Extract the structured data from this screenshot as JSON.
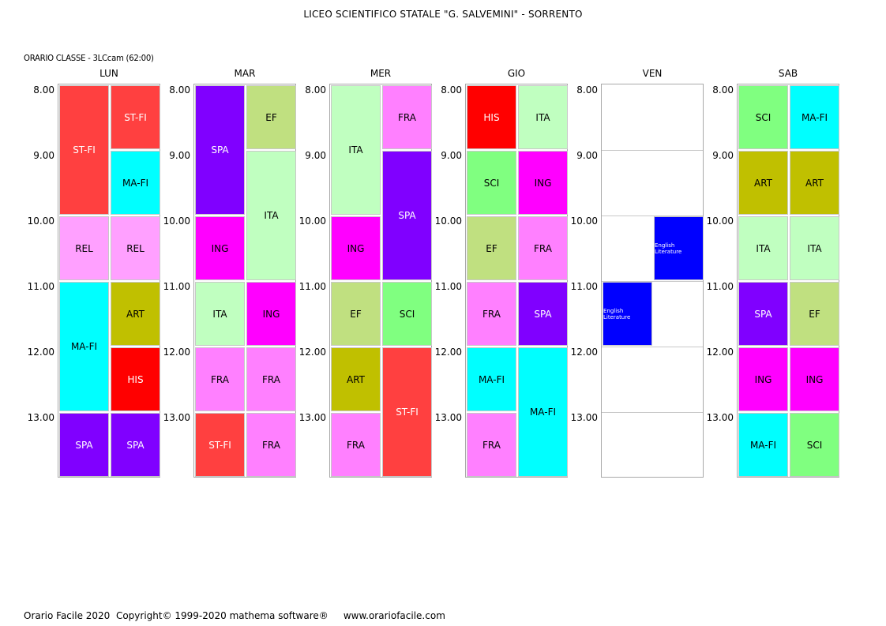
{
  "header": {
    "title": "LICEO SCIENTIFICO STATALE \"G. SALVEMINI\" - SORRENTO",
    "subtitle": "ORARIO CLASSE  -  3LCcam  (62:00)"
  },
  "subjects": {
    "ST-FI": {
      "bg": "#ff4040",
      "fg": "#ffffff"
    },
    "MA-FI": {
      "bg": "#00ffff",
      "fg": "#000000"
    },
    "REL": {
      "bg": "#ffa0ff",
      "fg": "#000000"
    },
    "ART": {
      "bg": "#c0c000",
      "fg": "#000000"
    },
    "HIS": {
      "bg": "#ff0000",
      "fg": "#ffffff"
    },
    "SPA": {
      "bg": "#8000ff",
      "fg": "#ffffff"
    },
    "EF": {
      "bg": "#c0e080",
      "fg": "#000000"
    },
    "ITA": {
      "bg": "#c0ffc0",
      "fg": "#000000"
    },
    "ING": {
      "bg": "#ff00ff",
      "fg": "#000000"
    },
    "FRA": {
      "bg": "#ff80ff",
      "fg": "#000000"
    },
    "SCI": {
      "bg": "#80ff80",
      "fg": "#000000"
    },
    "English Literature": {
      "bg": "#0000ff",
      "fg": "#ffffff"
    }
  },
  "times": [
    "8.00",
    "9.00",
    "10.00",
    "11.00",
    "12.00",
    "13.00"
  ],
  "days": [
    {
      "name": "LUN",
      "cells": [
        {
          "label": "ST-FI",
          "col": 0,
          "start": 0,
          "span": 2
        },
        {
          "label": "ST-FI",
          "col": 1,
          "start": 0,
          "span": 1
        },
        {
          "label": "MA-FI",
          "col": 1,
          "start": 1,
          "span": 1
        },
        {
          "label": "REL",
          "col": 0,
          "start": 2,
          "span": 1
        },
        {
          "label": "REL",
          "col": 1,
          "start": 2,
          "span": 1
        },
        {
          "label": "MA-FI",
          "col": 0,
          "start": 3,
          "span": 2
        },
        {
          "label": "ART",
          "col": 1,
          "start": 3,
          "span": 1
        },
        {
          "label": "HIS",
          "col": 1,
          "start": 4,
          "span": 1
        },
        {
          "label": "SPA",
          "col": 0,
          "start": 5,
          "span": 1
        },
        {
          "label": "SPA",
          "col": 1,
          "start": 5,
          "span": 1
        }
      ]
    },
    {
      "name": "MAR",
      "cells": [
        {
          "label": "SPA",
          "col": 0,
          "start": 0,
          "span": 2
        },
        {
          "label": "EF",
          "col": 1,
          "start": 0,
          "span": 1
        },
        {
          "label": "ITA",
          "col": 1,
          "start": 1,
          "span": 2
        },
        {
          "label": "ING",
          "col": 0,
          "start": 2,
          "span": 1
        },
        {
          "label": "ITA",
          "col": 0,
          "start": 3,
          "span": 1
        },
        {
          "label": "ING",
          "col": 1,
          "start": 3,
          "span": 1
        },
        {
          "label": "FRA",
          "col": 0,
          "start": 4,
          "span": 1
        },
        {
          "label": "FRA",
          "col": 1,
          "start": 4,
          "span": 1
        },
        {
          "label": "ST-FI",
          "col": 0,
          "start": 5,
          "span": 1
        },
        {
          "label": "FRA",
          "col": 1,
          "start": 5,
          "span": 1
        }
      ]
    },
    {
      "name": "MER",
      "cells": [
        {
          "label": "ITA",
          "col": 0,
          "start": 0,
          "span": 2
        },
        {
          "label": "FRA",
          "col": 1,
          "start": 0,
          "span": 1
        },
        {
          "label": "SPA",
          "col": 1,
          "start": 1,
          "span": 2
        },
        {
          "label": "ING",
          "col": 0,
          "start": 2,
          "span": 1
        },
        {
          "label": "EF",
          "col": 0,
          "start": 3,
          "span": 1
        },
        {
          "label": "SCI",
          "col": 1,
          "start": 3,
          "span": 1
        },
        {
          "label": "ART",
          "col": 0,
          "start": 4,
          "span": 1
        },
        {
          "label": "ST-FI",
          "col": 1,
          "start": 4,
          "span": 2
        },
        {
          "label": "FRA",
          "col": 0,
          "start": 5,
          "span": 1
        }
      ]
    },
    {
      "name": "GIO",
      "cells": [
        {
          "label": "HIS",
          "col": 0,
          "start": 0,
          "span": 1
        },
        {
          "label": "ITA",
          "col": 1,
          "start": 0,
          "span": 1
        },
        {
          "label": "SCI",
          "col": 0,
          "start": 1,
          "span": 1
        },
        {
          "label": "ING",
          "col": 1,
          "start": 1,
          "span": 1
        },
        {
          "label": "EF",
          "col": 0,
          "start": 2,
          "span": 1
        },
        {
          "label": "FRA",
          "col": 1,
          "start": 2,
          "span": 1
        },
        {
          "label": "FRA",
          "col": 0,
          "start": 3,
          "span": 1
        },
        {
          "label": "SPA",
          "col": 1,
          "start": 3,
          "span": 1
        },
        {
          "label": "MA-FI",
          "col": 0,
          "start": 4,
          "span": 1
        },
        {
          "label": "MA-FI",
          "col": 1,
          "start": 4,
          "span": 2
        },
        {
          "label": "FRA",
          "col": 0,
          "start": 5,
          "span": 1
        }
      ]
    },
    {
      "name": "VEN",
      "cells": [
        {
          "label": "English Literature",
          "col": 1,
          "start": 2,
          "span": 1
        },
        {
          "label": "English Literature",
          "col": 0,
          "start": 3,
          "span": 1
        }
      ]
    },
    {
      "name": "SAB",
      "cells": [
        {
          "label": "SCI",
          "col": 0,
          "start": 0,
          "span": 1
        },
        {
          "label": "MA-FI",
          "col": 1,
          "start": 0,
          "span": 1
        },
        {
          "label": "ART",
          "col": 0,
          "start": 1,
          "span": 1
        },
        {
          "label": "ART",
          "col": 1,
          "start": 1,
          "span": 1
        },
        {
          "label": "ITA",
          "col": 0,
          "start": 2,
          "span": 1
        },
        {
          "label": "ITA",
          "col": 1,
          "start": 2,
          "span": 1
        },
        {
          "label": "SPA",
          "col": 0,
          "start": 3,
          "span": 1
        },
        {
          "label": "EF",
          "col": 1,
          "start": 3,
          "span": 1
        },
        {
          "label": "ING",
          "col": 0,
          "start": 4,
          "span": 1
        },
        {
          "label": "ING",
          "col": 1,
          "start": 4,
          "span": 1
        },
        {
          "label": "MA-FI",
          "col": 0,
          "start": 5,
          "span": 1
        },
        {
          "label": "SCI",
          "col": 1,
          "start": 5,
          "span": 1
        }
      ]
    }
  ],
  "footer": {
    "text": "Orario Facile 2020  Copyright© 1999-2020 mathema software®     www.orariofacile.com"
  }
}
